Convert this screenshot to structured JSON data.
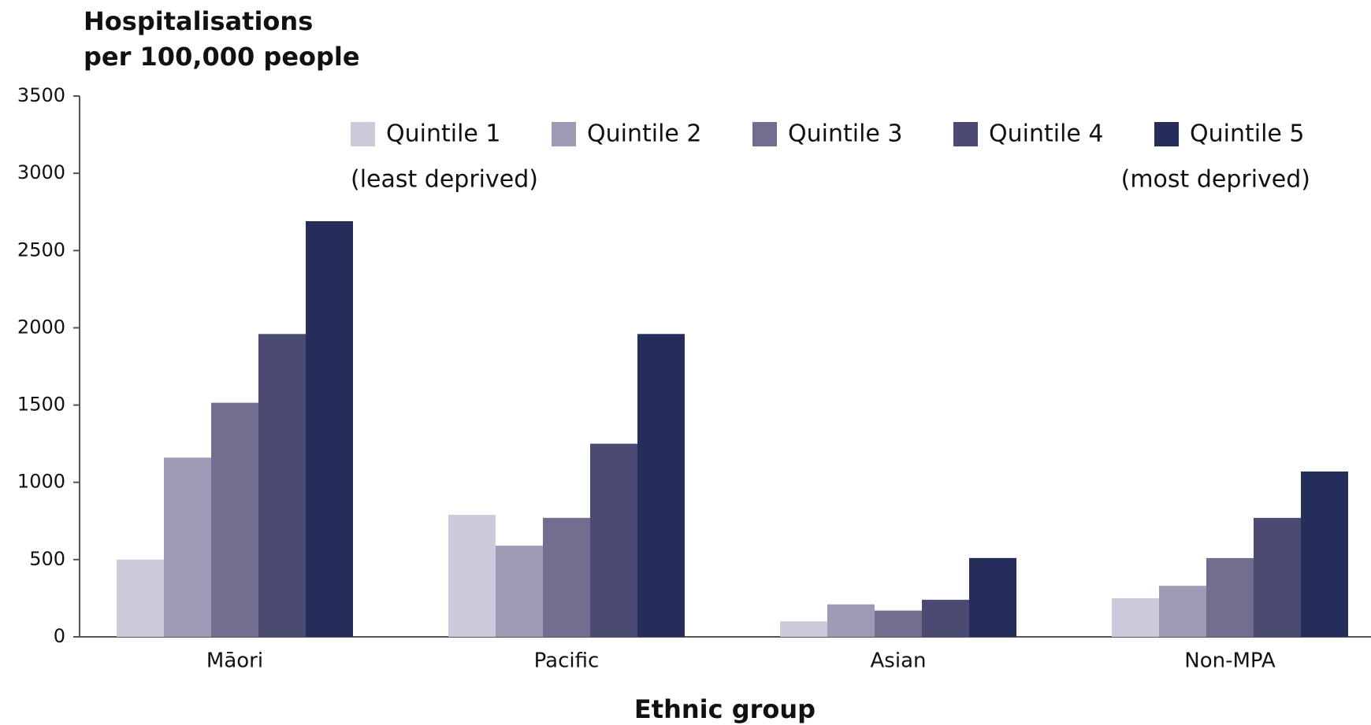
{
  "chart_data": {
    "type": "bar",
    "ylabel": [
      "Hospitalisations",
      "per 100,000 people"
    ],
    "xlabel": "Ethnic group",
    "categories": [
      "Māori",
      "Pacific",
      "Asian",
      "Non-MPA"
    ],
    "series": [
      {
        "name": "Quintile 1",
        "color": "#cccbdb",
        "values": [
          500,
          790,
          100,
          250
        ]
      },
      {
        "name": "Quintile 2",
        "color": "#9d9ab3",
        "values": [
          1160,
          590,
          210,
          330
        ]
      },
      {
        "name": "Quintile 3",
        "color": "#726e8f",
        "values": [
          1515,
          770,
          170,
          510
        ]
      },
      {
        "name": "Quintile 4",
        "color": "#4a4a73",
        "values": [
          1960,
          1250,
          240,
          770
        ]
      },
      {
        "name": "Quintile 5",
        "color": "#252e5a",
        "values": [
          2690,
          1960,
          510,
          1070
        ]
      }
    ],
    "legend_notes": [
      "(least deprived)",
      "(most deprived)"
    ],
    "ylim": [
      0,
      3500
    ],
    "yticks": [
      0,
      500,
      1000,
      1500,
      2000,
      2500,
      3000,
      3500
    ],
    "grid": false
  }
}
